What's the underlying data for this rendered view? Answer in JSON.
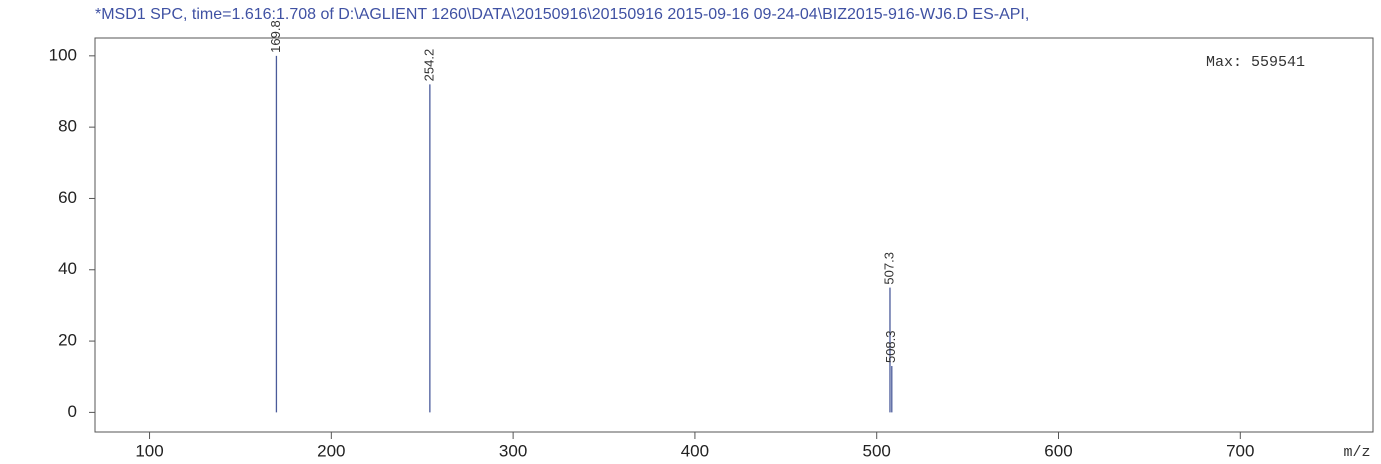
{
  "chart_data": {
    "type": "stem",
    "title": "*MSD1 SPC, time=1.616:1.708 of D:\\AGLIENT 1260\\DATA\\20150916\\20150916 2015-09-16 09-24-04\\BIZ2015-916-WJ6.D    ES-API,",
    "annotation": "Max: 559541",
    "x_label": "m/z",
    "x": [
      169.8,
      254.2,
      507.3,
      508.3
    ],
    "values": [
      100,
      92,
      35,
      13
    ],
    "color": "#4a5a9a",
    "xlim": [
      70,
      773
    ],
    "xticks": [
      100,
      200,
      300,
      400,
      500,
      600,
      700
    ],
    "ylim": [
      -5.5,
      105
    ],
    "yticks": [
      0,
      20,
      40,
      60,
      80,
      100
    ],
    "grid": false
  }
}
